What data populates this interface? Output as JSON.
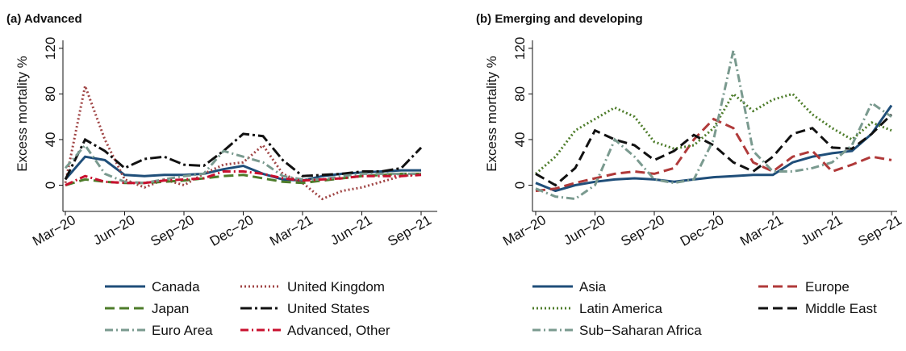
{
  "chart_data": [
    {
      "type": "line",
      "title": "(a) Advanced",
      "y_label": "Excess mortality %",
      "categories": [
        "Mar−20",
        null,
        null,
        "Jun−20",
        null,
        null,
        "Sep−20",
        null,
        null,
        "Dec−20",
        null,
        null,
        "Mar−21",
        null,
        null,
        "Jun−21",
        null,
        null,
        "Sep−21"
      ],
      "ylim": [
        -23,
        127
      ],
      "yticks": [
        0,
        40,
        80,
        120
      ],
      "series": [
        {
          "name": "Canada",
          "color": "#1f4e79",
          "dash": "solid",
          "values": [
            5,
            25,
            22,
            9,
            8,
            9,
            9,
            10,
            14,
            17,
            10,
            5,
            4,
            8,
            10,
            11,
            12,
            13,
            13
          ]
        },
        {
          "name": "United Kingdom",
          "color": "#a04545",
          "dash": "dotted",
          "values": [
            2,
            87,
            40,
            5,
            -2,
            5,
            0,
            10,
            18,
            20,
            35,
            10,
            2,
            -12,
            -5,
            -2,
            3,
            8,
            10
          ]
        },
        {
          "name": "Japan",
          "color": "#4d7c2a",
          "dash": "dashed",
          "values": [
            0,
            5,
            3,
            2,
            2,
            3,
            4,
            6,
            8,
            9,
            6,
            3,
            2,
            4,
            6,
            8,
            9,
            10,
            10
          ]
        },
        {
          "name": "United States",
          "color": "#111111",
          "dash": "longdashdot",
          "values": [
            5,
            40,
            30,
            15,
            23,
            25,
            18,
            17,
            30,
            45,
            43,
            22,
            8,
            9,
            10,
            12,
            12,
            15,
            33
          ]
        },
        {
          "name": "Euro Area",
          "color": "#7a9a8f",
          "dash": "dashdot",
          "values": [
            15,
            35,
            10,
            3,
            2,
            5,
            8,
            10,
            30,
            25,
            20,
            8,
            5,
            5,
            8,
            10,
            10,
            10,
            10
          ]
        },
        {
          "name": "Advanced, Other",
          "color": "#c8102e",
          "dash": "dashdot",
          "values": [
            0,
            8,
            3,
            2,
            2,
            4,
            5,
            6,
            12,
            12,
            10,
            6,
            4,
            5,
            6,
            8,
            8,
            8,
            9
          ]
        }
      ]
    },
    {
      "type": "line",
      "title": "(b) Emerging and developing",
      "y_label": "Excess mortality %",
      "categories": [
        "Mar−20",
        null,
        null,
        "Jun−20",
        null,
        null,
        "Sep−20",
        null,
        null,
        "Dec−20",
        null,
        null,
        "Mar−21",
        null,
        null,
        "Jun−21",
        null,
        null,
        "Sep−21"
      ],
      "ylim": [
        -23,
        127
      ],
      "yticks": [
        0,
        40,
        80,
        120
      ],
      "series": [
        {
          "name": "Asia",
          "color": "#1f4e79",
          "dash": "solid",
          "values": [
            2,
            -5,
            0,
            3,
            5,
            6,
            5,
            3,
            5,
            7,
            8,
            9,
            9,
            20,
            25,
            28,
            30,
            45,
            70
          ]
        },
        {
          "name": "Europe",
          "color": "#b03a3a",
          "dash": "dashed",
          "values": [
            -5,
            -3,
            2,
            6,
            10,
            12,
            10,
            15,
            40,
            58,
            50,
            20,
            12,
            25,
            30,
            12,
            18,
            25,
            22
          ]
        },
        {
          "name": "Latin America",
          "color": "#4d7c2a",
          "dash": "dotted",
          "values": [
            10,
            25,
            48,
            58,
            68,
            60,
            38,
            32,
            35,
            50,
            80,
            65,
            75,
            80,
            62,
            50,
            40,
            55,
            48
          ]
        },
        {
          "name": "Middle East",
          "color": "#111111",
          "dash": "dashed",
          "values": [
            10,
            0,
            15,
            48,
            40,
            35,
            22,
            30,
            44,
            35,
            20,
            12,
            25,
            45,
            50,
            33,
            32,
            45,
            62
          ]
        },
        {
          "name": "Sub−Saharan Africa",
          "color": "#7a9a8f",
          "dash": "dashdot",
          "values": [
            -3,
            -10,
            -12,
            0,
            40,
            25,
            5,
            2,
            5,
            40,
            118,
            30,
            12,
            12,
            15,
            20,
            35,
            72,
            60
          ]
        }
      ]
    }
  ]
}
